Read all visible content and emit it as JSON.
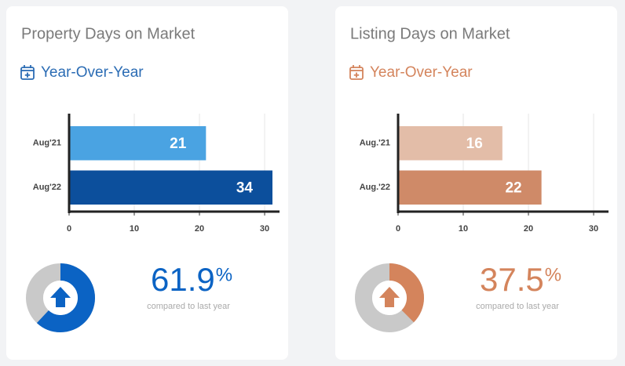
{
  "chart_data": [
    {
      "type": "bar",
      "title": "Property Days on Market",
      "subtitle": "Year-Over-Year",
      "accent": "#2b6cb4",
      "categories": [
        "Aug'21",
        "Aug'22"
      ],
      "values": [
        21,
        34
      ],
      "colors": [
        "#4aa3e2",
        "#0c4f9c"
      ],
      "xlim": [
        0,
        31.2
      ],
      "xticks": [
        0,
        10,
        20,
        30
      ],
      "grid": true,
      "change": {
        "type": "donut",
        "value": 61.9,
        "unit": "%",
        "caption": "compared to last year",
        "color": "#0b63c4"
      }
    },
    {
      "type": "bar",
      "title": "Listing Days on Market",
      "subtitle": "Year-Over-Year",
      "accent": "#d4845c",
      "categories": [
        "Aug.'21",
        "Aug.'22"
      ],
      "values": [
        16,
        22
      ],
      "colors": [
        "#e3bda8",
        "#cf8a68"
      ],
      "xlim": [
        0,
        31.2
      ],
      "xticks": [
        0,
        10,
        20,
        30
      ],
      "grid": true,
      "change": {
        "type": "donut",
        "value": 37.5,
        "unit": "%",
        "caption": "compared to last year",
        "color": "#d4845c"
      }
    }
  ]
}
